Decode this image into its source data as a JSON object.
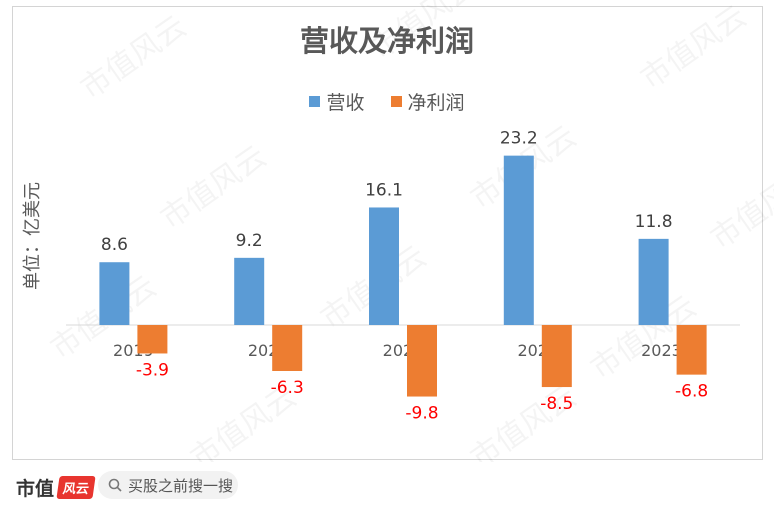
{
  "chart_data": {
    "type": "bar",
    "title": "营收及净利润",
    "ylabel": "单位：亿美元",
    "categories": [
      "2019",
      "2020",
      "2021",
      "2022",
      "2023H1"
    ],
    "series": [
      {
        "name": "营收",
        "values": [
          8.6,
          9.2,
          16.1,
          23.2,
          11.8
        ],
        "color": "#5b9bd5"
      },
      {
        "name": "净利润",
        "values": [
          -3.9,
          -6.3,
          -9.8,
          -8.5,
          -6.8
        ],
        "color": "#ed7d31"
      }
    ],
    "ylim": [
      -10,
      24
    ],
    "grid": false,
    "legend_position": "top",
    "value_label_colors": {
      "positive": "#404040",
      "negative": "#ff0000"
    }
  },
  "watermark": "市值风云",
  "footer": {
    "brand": "市值",
    "brand_badge": "风云",
    "search_placeholder": "买股之前搜一搜"
  }
}
